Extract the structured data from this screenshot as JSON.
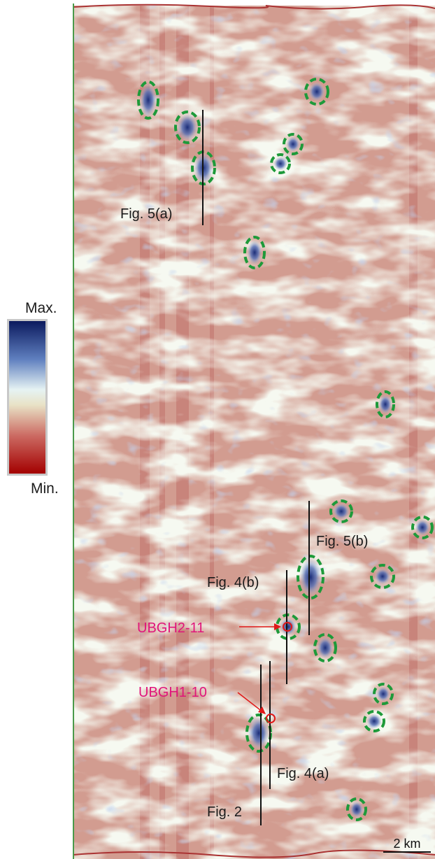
{
  "colorbar": {
    "max_label": "Max.",
    "min_label": "Min."
  },
  "sections": [
    "Fig. 5(a)",
    "Fig. 5(b)",
    "Fig. 4(b)",
    "Fig. 4(a)",
    "Fig. 2"
  ],
  "wells": [
    "UBGH2-11",
    "UBGH1-10"
  ],
  "scale_bar": "2 km"
}
